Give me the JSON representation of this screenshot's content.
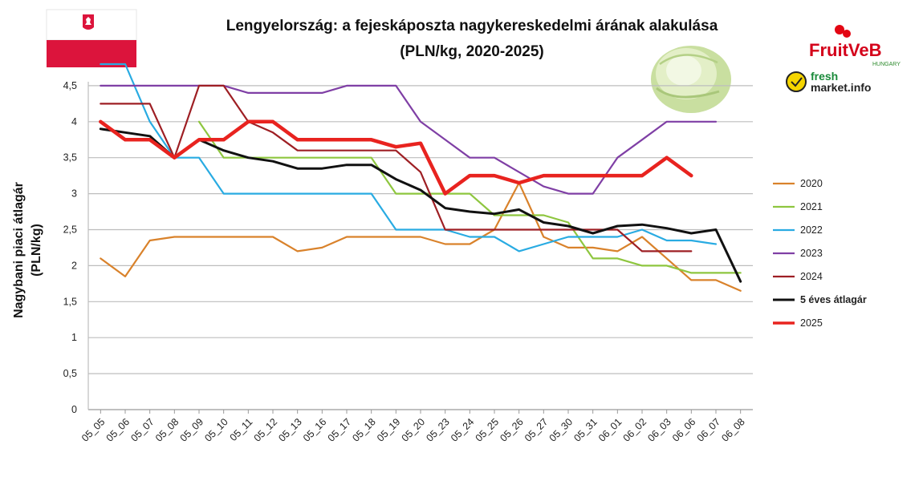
{
  "chart_data": {
    "type": "line",
    "title": "Lengyelország: a fejeskáposzta nagykereskedelmi árának alakulása",
    "subtitle": "(PLN/kg, 2020-2025)",
    "ylabel_line1": "Nagybani piaci átlagár",
    "ylabel_line2": "(PLN/kg)",
    "xlabel": "",
    "ylim": [
      0,
      5
    ],
    "yticks": [
      "0",
      "0,5",
      "1",
      "1,5",
      "2",
      "2,5",
      "3",
      "3,5",
      "4",
      "4,5"
    ],
    "grid": true,
    "legend_position": "right",
    "categories": [
      "05_05",
      "05_06",
      "05_07",
      "05_08",
      "05_09",
      "05_10",
      "05_11",
      "05_12",
      "05_13",
      "05_16",
      "05_17",
      "05_18",
      "05_19",
      "05_20",
      "05_23",
      "05_24",
      "05_25",
      "05_26",
      "05_27",
      "05_30",
      "05_31",
      "06_01",
      "06_02",
      "06_03",
      "06_06",
      "06_07",
      "06_08"
    ],
    "series": [
      {
        "name": "2020",
        "color": "#d9822b",
        "width": 2.2,
        "values": [
          2.1,
          1.85,
          2.35,
          2.4,
          2.4,
          2.4,
          2.4,
          2.4,
          2.2,
          2.25,
          2.4,
          2.4,
          2.4,
          2.4,
          2.3,
          2.3,
          2.5,
          3.15,
          2.4,
          2.25,
          2.25,
          2.2,
          2.4,
          2.1,
          1.8,
          1.8,
          1.65
        ]
      },
      {
        "name": "2021",
        "color": "#8ec63f",
        "width": 2.2,
        "values": [
          null,
          null,
          null,
          null,
          4.0,
          3.5,
          3.5,
          3.5,
          3.5,
          3.5,
          3.5,
          3.5,
          3.0,
          3.0,
          3.0,
          3.0,
          2.7,
          2.7,
          2.7,
          2.6,
          2.1,
          2.1,
          2.0,
          2.0,
          1.9,
          1.9,
          1.9
        ]
      },
      {
        "name": "2022",
        "color": "#29abe2",
        "width": 2.2,
        "values": [
          4.8,
          4.8,
          4.0,
          3.5,
          3.5,
          3.0,
          3.0,
          3.0,
          3.0,
          3.0,
          3.0,
          3.0,
          2.5,
          2.5,
          2.5,
          2.4,
          2.4,
          2.2,
          2.3,
          2.4,
          2.4,
          2.4,
          2.5,
          2.35,
          2.35,
          2.3,
          null
        ]
      },
      {
        "name": "2023",
        "color": "#7f3fa5",
        "width": 2.2,
        "values": [
          4.5,
          4.5,
          4.5,
          4.5,
          4.5,
          4.5,
          4.4,
          4.4,
          4.4,
          4.4,
          4.5,
          4.5,
          4.5,
          4.0,
          3.75,
          3.5,
          3.5,
          3.3,
          3.1,
          3.0,
          3.0,
          3.5,
          3.75,
          4.0,
          4.0,
          4.0,
          null
        ]
      },
      {
        "name": "2024",
        "color": "#9e1f24",
        "width": 2.2,
        "values": [
          4.25,
          4.25,
          4.25,
          3.5,
          4.5,
          4.5,
          4.0,
          3.85,
          3.6,
          3.6,
          3.6,
          3.6,
          3.6,
          3.3,
          2.5,
          2.5,
          2.5,
          2.5,
          2.5,
          2.5,
          2.5,
          2.5,
          2.2,
          2.2,
          2.2,
          null,
          null
        ]
      },
      {
        "name": "5 éves átlagár",
        "color": "#111111",
        "width": 3,
        "values": [
          3.9,
          3.85,
          3.8,
          3.5,
          3.75,
          3.6,
          3.5,
          3.45,
          3.35,
          3.35,
          3.4,
          3.4,
          3.2,
          3.05,
          2.8,
          2.75,
          2.72,
          2.78,
          2.6,
          2.55,
          2.45,
          2.55,
          2.57,
          2.52,
          2.45,
          2.5,
          1.78
        ]
      },
      {
        "name": "2025",
        "color": "#e8231f",
        "width": 4.5,
        "values": [
          4.0,
          3.75,
          3.75,
          3.5,
          3.75,
          3.75,
          4.0,
          4.0,
          3.75,
          3.75,
          3.75,
          3.75,
          3.65,
          3.7,
          3.0,
          3.25,
          3.25,
          3.15,
          3.25,
          3.25,
          3.25,
          3.25,
          3.25,
          3.5,
          3.25,
          null,
          null
        ]
      }
    ],
    "legend_order": [
      "2020",
      "2021",
      "2022",
      "2023",
      "2024",
      "5 éves átlagár",
      "2025"
    ]
  },
  "logos": {
    "brand1": "FruitVeB",
    "brand1_sub": "HUNGARY",
    "brand2_line1": "fresh",
    "brand2_line2": "market.info"
  },
  "flag": {
    "top_color": "#ffffff",
    "bottom_color": "#dc143c"
  }
}
